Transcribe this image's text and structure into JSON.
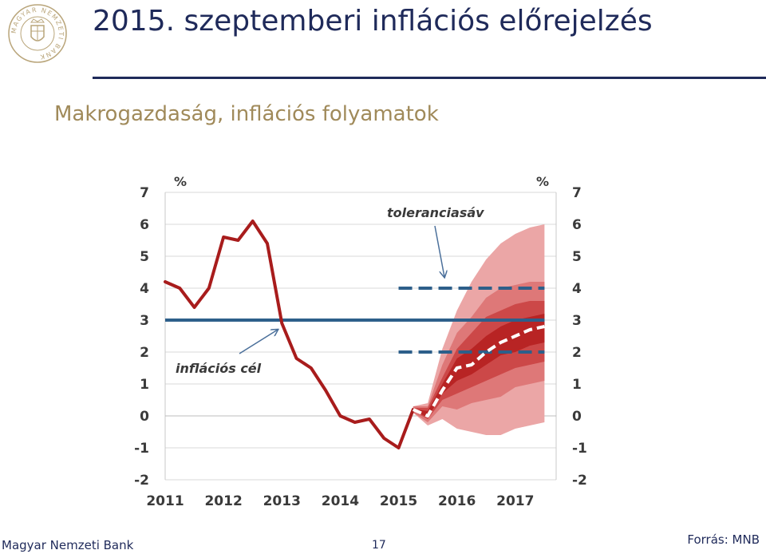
{
  "header": {
    "title": "2015. szeptemberi inflációs előrejelzés",
    "subtitle": "Makrogazdaság, inflációs folyamatok"
  },
  "logo": {
    "icon": "mnb-seal-icon",
    "text": "MAGYAR NEMZETI BANK"
  },
  "footer": {
    "bank_name": "Magyar Nemzeti Bank",
    "page_number": "17",
    "source": "Forrás: MNB"
  },
  "colors": {
    "actual": "#a81c1c",
    "target": "#2d5f8a",
    "band_inner": "#b82424",
    "band_mid": "#cc4848",
    "band_mid2": "#de7878",
    "band_outer": "#eba6a6",
    "forecast": "#ffffff"
  },
  "chart_data": {
    "type": "line",
    "unit_left": "%",
    "unit_right": "%",
    "x_ticks": [
      "2011",
      "2012",
      "2013",
      "2014",
      "2015",
      "2016",
      "2017"
    ],
    "y_ticks": [
      "7",
      "6",
      "5",
      "4",
      "3",
      "2",
      "1",
      "0",
      "-1",
      "-2"
    ],
    "ylim": [
      -2,
      7
    ],
    "xlim": [
      2011,
      2017.7
    ],
    "series": [
      {
        "role": "actual",
        "points": [
          [
            2011.0,
            4.2
          ],
          [
            2011.25,
            4.0
          ],
          [
            2011.5,
            3.4
          ],
          [
            2011.75,
            4.0
          ],
          [
            2012.0,
            5.6
          ],
          [
            2012.25,
            5.5
          ],
          [
            2012.5,
            6.1
          ],
          [
            2012.75,
            5.4
          ],
          [
            2013.0,
            2.9
          ],
          [
            2013.25,
            1.8
          ],
          [
            2013.5,
            1.5
          ],
          [
            2013.75,
            0.8
          ],
          [
            2014.0,
            0.0
          ],
          [
            2014.25,
            -0.2
          ],
          [
            2014.5,
            -0.1
          ],
          [
            2014.75,
            -0.7
          ],
          [
            2015.0,
            -1.0
          ],
          [
            2015.25,
            0.2
          ]
        ]
      },
      {
        "role": "forecast",
        "points": [
          [
            2015.25,
            0.2
          ],
          [
            2015.5,
            0.0
          ],
          [
            2015.75,
            0.8
          ],
          [
            2016.0,
            1.5
          ],
          [
            2016.25,
            1.6
          ],
          [
            2016.5,
            2.0
          ],
          [
            2016.75,
            2.3
          ],
          [
            2017.0,
            2.5
          ],
          [
            2017.25,
            2.7
          ],
          [
            2017.5,
            2.8
          ]
        ]
      }
    ],
    "fan_x": [
      2015.25,
      2015.5,
      2015.75,
      2016.0,
      2016.25,
      2016.5,
      2016.75,
      2017.0,
      2017.25,
      2017.5
    ],
    "fan_bands": [
      {
        "upper": [
          0.3,
          0.4,
          2.1,
          3.3,
          4.2,
          4.9,
          5.4,
          5.7,
          5.9,
          6.0
        ],
        "lower": [
          0.1,
          -0.3,
          -0.1,
          -0.4,
          -0.5,
          -0.6,
          -0.6,
          -0.4,
          -0.3,
          -0.2
        ]
      },
      {
        "upper": [
          0.3,
          0.3,
          1.6,
          2.6,
          3.1,
          3.7,
          4.0,
          4.1,
          4.2,
          4.2
        ],
        "lower": [
          0.1,
          -0.2,
          0.3,
          0.2,
          0.4,
          0.5,
          0.6,
          0.9,
          1.0,
          1.1
        ]
      },
      {
        "upper": [
          0.25,
          0.25,
          1.2,
          2.1,
          2.6,
          3.1,
          3.3,
          3.5,
          3.6,
          3.6
        ],
        "lower": [
          0.15,
          -0.1,
          0.5,
          0.7,
          0.9,
          1.1,
          1.3,
          1.5,
          1.6,
          1.7
        ]
      },
      {
        "upper": [
          0.22,
          0.15,
          1.0,
          1.8,
          2.1,
          2.5,
          2.8,
          3.0,
          3.1,
          3.2
        ],
        "lower": [
          0.18,
          -0.05,
          0.7,
          1.1,
          1.3,
          1.6,
          1.9,
          2.0,
          2.2,
          2.3
        ]
      }
    ],
    "target_line": {
      "value": 3.0,
      "from": 2011.0,
      "to": 2017.5
    },
    "tolerance_lines": [
      {
        "value": 4.0,
        "from": 2015.0,
        "to": 2017.5
      },
      {
        "value": 2.0,
        "from": 2015.0,
        "to": 2017.5
      }
    ],
    "annotations": {
      "target_label": "inflációs cél",
      "tolerance_label": "toleranciasáv"
    }
  }
}
